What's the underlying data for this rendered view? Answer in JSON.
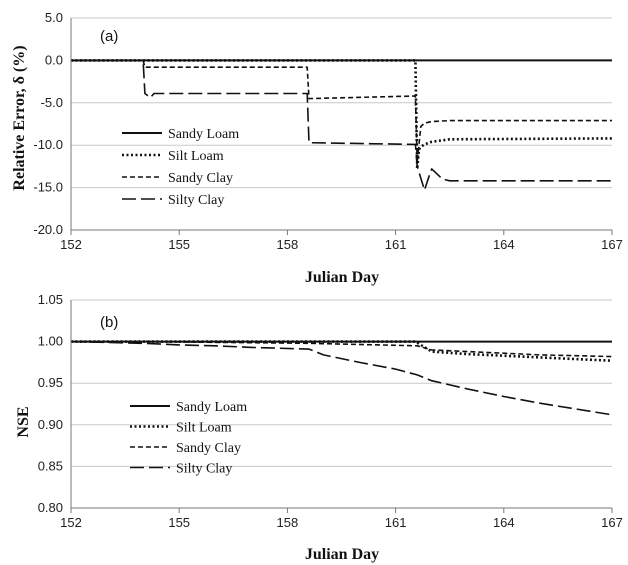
{
  "chart_data": [
    {
      "type": "line",
      "panel_label": "(a)",
      "xlabel": "Julian Day",
      "ylabel": "Relative Error, δ (%)",
      "xlim": [
        152,
        167
      ],
      "xticks": [
        152,
        155,
        158,
        161,
        164,
        167
      ],
      "ylim": [
        -20,
        5
      ],
      "yticks": [
        5.0,
        0.0,
        -5.0,
        -10.0,
        -15.0,
        -20.0
      ],
      "ytick_labels": [
        "5.0",
        "0.0",
        "-5.0",
        "-10.0",
        "-15.0",
        "-20.0"
      ],
      "grid": "horizontal",
      "legend": "left",
      "series": [
        {
          "name": "Sandy Loam",
          "style": "solid",
          "x": [
            152,
            167
          ],
          "y": [
            0,
            0
          ]
        },
        {
          "name": "Silt Loam",
          "style": "dotted",
          "x": [
            152,
            161.55,
            161.6,
            161.65,
            161.7,
            161.8,
            162.0,
            162.5,
            167
          ],
          "y": [
            0,
            0,
            -12.8,
            -10.5,
            -10.2,
            -9.9,
            -9.6,
            -9.3,
            -9.2
          ]
        },
        {
          "name": "Sandy Clay",
          "style": "dashed",
          "x": [
            152,
            154.0,
            154.05,
            158.55,
            158.6,
            161.55,
            161.6,
            161.7,
            161.8,
            162.0,
            162.5,
            167
          ],
          "y": [
            0,
            0,
            -0.8,
            -0.8,
            -4.5,
            -4.2,
            -12.0,
            -7.8,
            -7.4,
            -7.2,
            -7.1,
            -7.1
          ]
        },
        {
          "name": "Silty Clay",
          "style": "long-dash",
          "x": [
            152,
            154.0,
            154.05,
            154.2,
            154.3,
            158.55,
            158.6,
            161.55,
            161.6,
            161.8,
            161.9,
            162.0,
            162.3,
            162.5,
            167
          ],
          "y": [
            0,
            0,
            -3.9,
            -4.4,
            -3.9,
            -3.9,
            -9.7,
            -9.9,
            -12.5,
            -15.3,
            -14.0,
            -12.8,
            -14.0,
            -14.2,
            -14.2
          ]
        }
      ]
    },
    {
      "type": "line",
      "panel_label": "(b)",
      "xlabel": "Julian Day",
      "ylabel": "NSE",
      "xlim": [
        152,
        167
      ],
      "xticks": [
        152,
        155,
        158,
        161,
        164,
        167
      ],
      "ylim": [
        0.8,
        1.05
      ],
      "yticks": [
        1.05,
        1.0,
        0.95,
        0.9,
        0.85,
        0.8
      ],
      "ytick_labels": [
        "1.05",
        "1.00",
        "0.95",
        "0.90",
        "0.85",
        "0.80"
      ],
      "grid": "horizontal",
      "legend": "left",
      "series": [
        {
          "name": "Sandy Loam",
          "style": "solid",
          "x": [
            152,
            167
          ],
          "y": [
            1.0,
            1.0
          ]
        },
        {
          "name": "Silt Loam",
          "style": "dotted",
          "x": [
            152,
            161.55,
            162,
            163,
            164,
            165,
            166,
            167
          ],
          "y": [
            1.0,
            1.0,
            0.988,
            0.985,
            0.983,
            0.981,
            0.979,
            0.977
          ]
        },
        {
          "name": "Sandy Clay",
          "style": "dashed",
          "x": [
            152,
            154,
            158.6,
            161.6,
            162,
            163,
            164,
            165,
            166,
            167
          ],
          "y": [
            1.0,
            1.0,
            0.998,
            0.995,
            0.99,
            0.988,
            0.986,
            0.984,
            0.983,
            0.982
          ]
        },
        {
          "name": "Silty Clay",
          "style": "long-dash",
          "x": [
            152,
            154,
            155,
            156,
            157,
            158.6,
            159,
            160,
            161,
            161.6,
            162,
            163,
            164,
            165,
            166,
            167
          ],
          "y": [
            1.0,
            0.998,
            0.996,
            0.995,
            0.993,
            0.991,
            0.984,
            0.975,
            0.967,
            0.96,
            0.953,
            0.943,
            0.934,
            0.926,
            0.919,
            0.912
          ]
        }
      ]
    }
  ]
}
